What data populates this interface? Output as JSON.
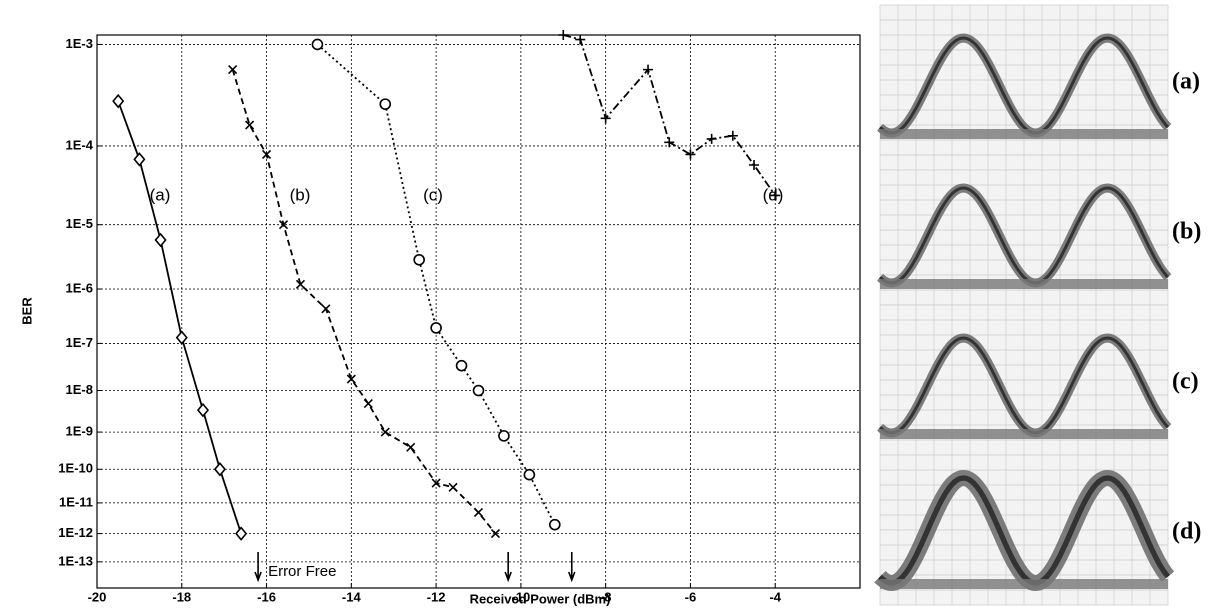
{
  "chart_data": {
    "type": "line",
    "yscale": "neg-log-log",
    "grid": true,
    "x_label": "Received Power (dBm)",
    "y_label": "BER",
    "xlim": [
      -20,
      -2
    ],
    "xticks": [
      -20,
      -18,
      -16,
      -14,
      -12,
      -10,
      -8,
      -6,
      -4
    ],
    "ylim": [
      0.0012,
      1e-14
    ],
    "yticks": [
      {
        "value": 0.001,
        "label": "1E-3"
      },
      {
        "value": 0.0001,
        "label": "1E-4"
      },
      {
        "value": 1e-05,
        "label": "1E-5"
      },
      {
        "value": 1e-06,
        "label": "1E-6"
      },
      {
        "value": 1e-07,
        "label": "1E-7"
      },
      {
        "value": 1e-08,
        "label": "1E-8"
      },
      {
        "value": 1e-09,
        "label": "1E-9"
      },
      {
        "value": 1e-10,
        "label": "1E-10"
      },
      {
        "value": 1e-11,
        "label": "1E-11"
      },
      {
        "value": 1e-12,
        "label": "1E-12"
      },
      {
        "value": 1e-13,
        "label": "1E-13"
      }
    ],
    "series": [
      {
        "name": "(a)",
        "color": "#000000",
        "linestyle": "solid",
        "marker": "diamond",
        "x": [
          -19.5,
          -19,
          -18.5,
          -18,
          -17.5,
          -17.1,
          -16.6
        ],
        "values": [
          0.0003,
          7e-05,
          6e-06,
          1.3e-07,
          3.5e-09,
          1e-10,
          1e-12
        ]
      },
      {
        "name": "(b)",
        "color": "#000000",
        "linestyle": "dashed",
        "marker": "x",
        "x": [
          -16.8,
          -16.4,
          -16,
          -15.6,
          -15.2,
          -14.6,
          -14,
          -13.6,
          -13.2,
          -12.6,
          -12,
          -11.6,
          -11,
          -10.6
        ],
        "values": [
          0.0006,
          0.00017,
          8e-05,
          1e-05,
          1.2e-06,
          4.5e-07,
          1.8e-08,
          5e-09,
          1e-09,
          4e-10,
          4e-11,
          3e-11,
          5e-12,
          1e-12
        ]
      },
      {
        "name": "(c)",
        "color": "#000000",
        "linestyle": "dotted",
        "marker": "circle",
        "x": [
          -14.8,
          -13.2,
          -12.4,
          -12,
          -11.4,
          -11,
          -10.4,
          -9.8,
          -9.2
        ],
        "values": [
          0.001,
          0.00028,
          3e-06,
          2e-07,
          3.5e-08,
          1e-08,
          8e-10,
          7e-11,
          2e-12
        ]
      },
      {
        "name": "(d)",
        "color": "#000000",
        "linestyle": "dashdot",
        "marker": "plus",
        "x": [
          -9,
          -8.6,
          -8,
          -7,
          -6.5,
          -6,
          -5.5,
          -5,
          -4.5,
          -4
        ],
        "values": [
          0.0012,
          0.0011,
          0.0002,
          0.0006,
          0.00011,
          8e-05,
          0.00012,
          0.00013,
          6e-05,
          2.5e-05
        ]
      }
    ],
    "error_free_label": "Error Free",
    "error_free_x": [
      -16.2,
      -10.3,
      -8.8
    ]
  },
  "eye_diagrams": {
    "labels": [
      "(a)",
      "(b)",
      "(c)",
      "(d)"
    ]
  }
}
